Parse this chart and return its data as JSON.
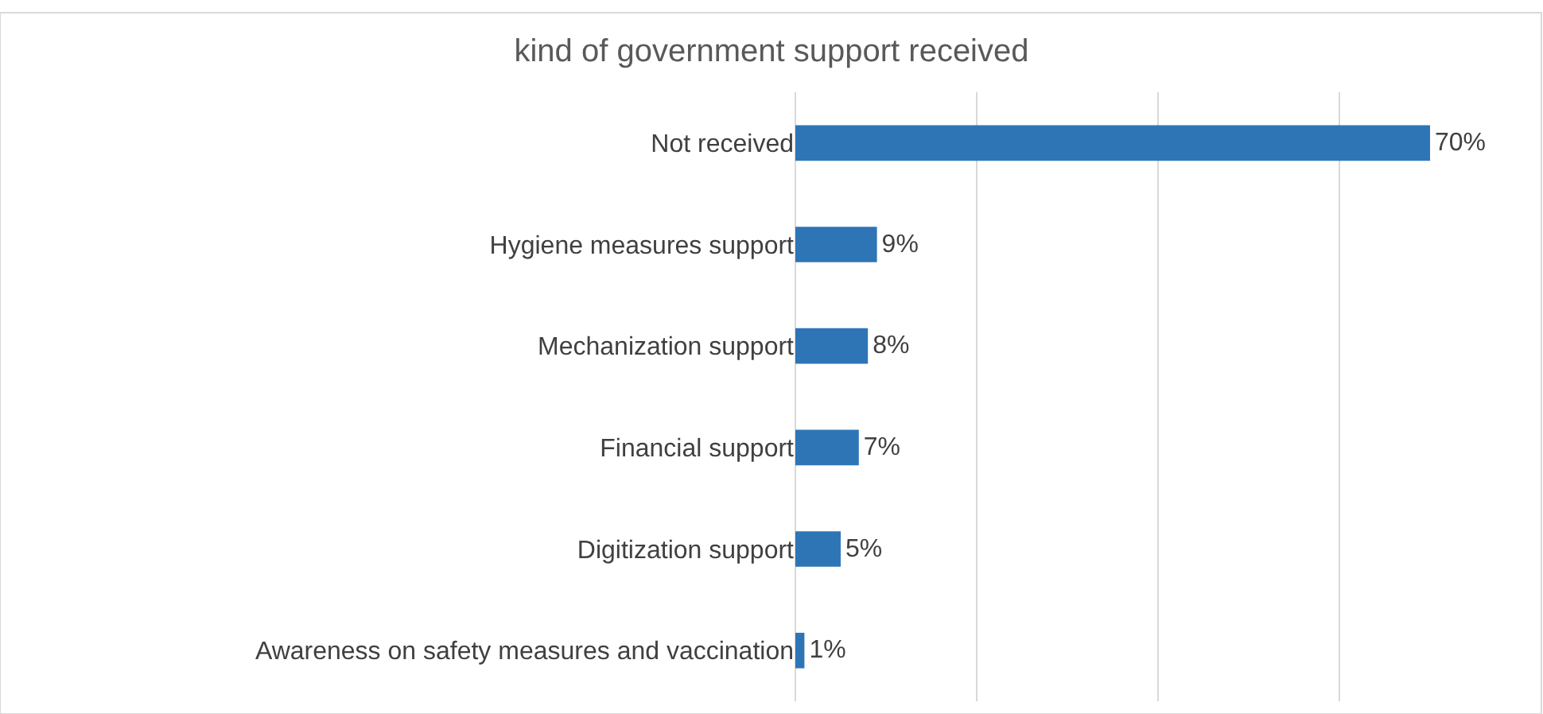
{
  "chart_data": {
    "type": "bar",
    "orientation": "horizontal",
    "title": "kind of government support received",
    "categories": [
      "Not received",
      "Hygiene measures support",
      "Mechanization support",
      "Financial support",
      "Digitization support",
      "Awareness on safety measures and vaccination"
    ],
    "values": [
      70,
      9,
      8,
      7,
      5,
      1
    ],
    "value_labels": [
      "70%",
      "9%",
      "8%",
      "7%",
      "5%",
      "1%"
    ],
    "color": "#2e75b6",
    "xticks": [
      {
        "value": 20,
        "label": null
      },
      {
        "value": 40,
        "label": null
      },
      {
        "value": 60,
        "label": null
      }
    ],
    "grid": "x",
    "tick_labels": "y",
    "legend": false
  }
}
